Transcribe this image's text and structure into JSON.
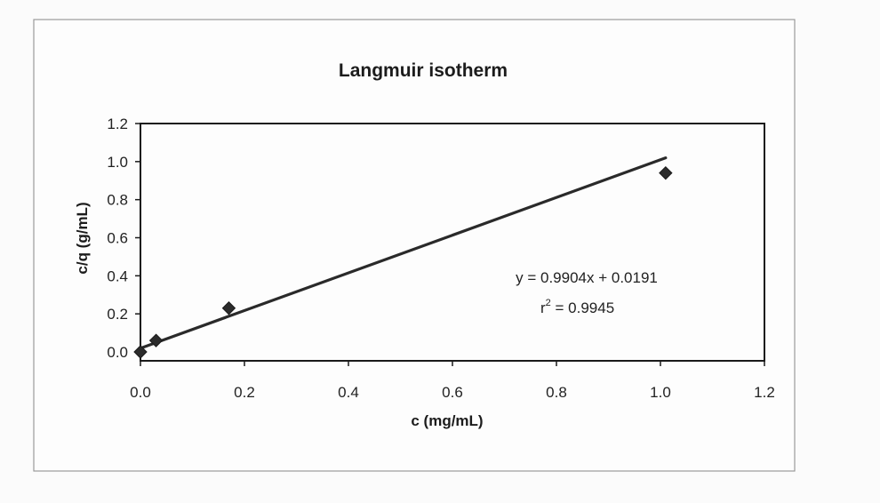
{
  "chart_data": {
    "type": "scatter",
    "title": "Langmuir isotherm",
    "xlabel": "c (mg/mL)",
    "ylabel": "c/q (g/mL)",
    "xlim": [
      0,
      1.2
    ],
    "ylim": [
      0,
      1.2
    ],
    "x_ticks": [
      "0.0",
      "0.2",
      "0.4",
      "0.6",
      "0.8",
      "1.0",
      "1.2"
    ],
    "y_ticks": [
      "0.0",
      "0.2",
      "0.4",
      "0.6",
      "0.8",
      "1.0",
      "1.2"
    ],
    "grid": false,
    "legend": "none",
    "series": [
      {
        "marker": "diamond",
        "points": [
          {
            "x": 0.0,
            "y": 0.0
          },
          {
            "x": 0.03,
            "y": 0.06
          },
          {
            "x": 0.17,
            "y": 0.23
          },
          {
            "x": 1.01,
            "y": 0.94
          }
        ]
      }
    ],
    "trendline": {
      "slope": 0.9904,
      "intercept": 0.0191,
      "x_range": [
        0.0,
        1.01
      ]
    },
    "annotations": {
      "equation": "y = 0.9904x + 0.0191",
      "r2_label": "r",
      "r2_exp": "2",
      "r2_value": " = 0.9945"
    }
  }
}
